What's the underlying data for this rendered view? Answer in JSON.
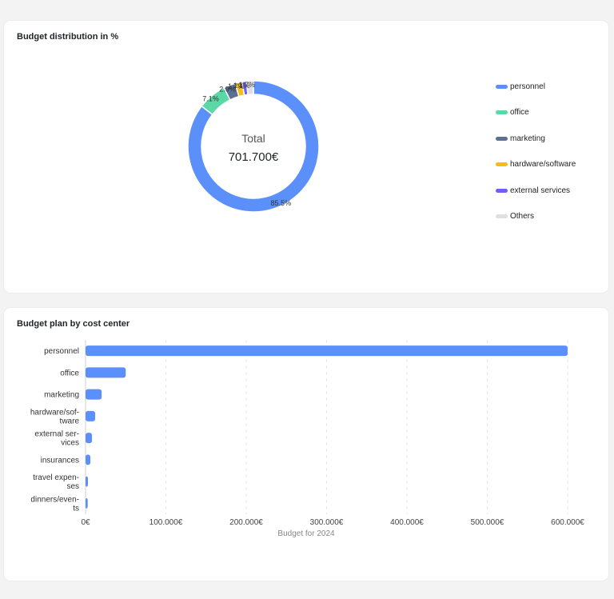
{
  "donut_card": {
    "title": "Budget distribution in %"
  },
  "bar_card": {
    "title": "Budget plan by cost center"
  },
  "donut": {
    "center_label": "Total",
    "center_value": "701.700€"
  },
  "colors": {
    "personnel": "#5b8ff9",
    "office": "#5ad8a6",
    "marketing": "#5d7092",
    "hardware_software": "#f6bd16",
    "external_services": "#6f5ef9",
    "others": "#dcdfe4",
    "bar": "#5b8ff9"
  },
  "legend": [
    {
      "label": "personnel",
      "color": "#5b8ff9"
    },
    {
      "label": "office",
      "color": "#5ad8a6"
    },
    {
      "label": "marketing",
      "color": "#5d7092"
    },
    {
      "label": "hardware/software",
      "color": "#f6bd16"
    },
    {
      "label": "external services",
      "color": "#6f5ef9"
    },
    {
      "label": "Others",
      "color": "#dcdfe4"
    }
  ],
  "chart_data": [
    {
      "type": "pie",
      "title": "Budget distribution in %",
      "labels": [
        "personnel",
        "office",
        "marketing",
        "hardware/software",
        "external services",
        "Others"
      ],
      "values": [
        85.5,
        7.1,
        2.9,
        1.7,
        1.1,
        1.7
      ],
      "display_labels": [
        "85.5%",
        "7.1%",
        "2.9%",
        "1.7%",
        "1.1%",
        "1.7%"
      ],
      "legend_position": "right"
    },
    {
      "type": "bar",
      "orientation": "horizontal",
      "title": "Budget plan by cost center",
      "categories": [
        "personnel",
        "office",
        "marketing",
        "hardware/software",
        "external services",
        "insurances",
        "travel expenses",
        "dinners/events"
      ],
      "category_display": [
        [
          "personnel"
        ],
        [
          "office"
        ],
        [
          "marketing"
        ],
        [
          "hardware/sof-",
          "tware"
        ],
        [
          "external ser-",
          "vices"
        ],
        [
          "insurances"
        ],
        [
          "travel expen-",
          "ses"
        ],
        [
          "dinners/even-",
          "ts"
        ]
      ],
      "values": [
        600000,
        50000,
        20000,
        12000,
        8000,
        6000,
        3000,
        2700
      ],
      "xlabel": "Budget for 2024",
      "xlim": [
        0,
        600000
      ],
      "x_ticks": [
        0,
        100000,
        200000,
        300000,
        400000,
        500000,
        600000
      ],
      "x_tick_labels": [
        "0€",
        "100.000€",
        "200.000€",
        "300.000€",
        "400.000€",
        "500.000€",
        "600.000€"
      ],
      "grid": "vertical dashed"
    }
  ]
}
